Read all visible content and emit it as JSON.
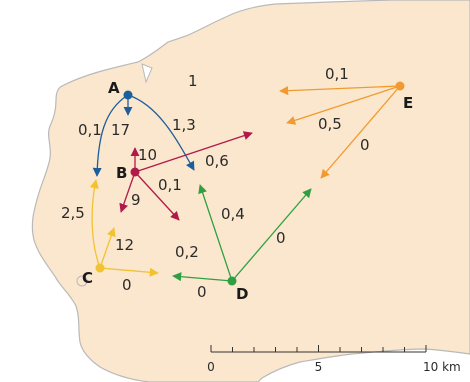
{
  "colors": {
    "land": "#fbe7cd",
    "coast": "#b9b9b9",
    "sea": "#ffffff",
    "node_A": "#1c5d9c",
    "node_B": "#b01a4a",
    "node_C": "#f2c230",
    "node_D": "#2ea043",
    "node_E": "#f29a2e"
  },
  "nodes": {
    "A": "A",
    "B": "B",
    "C": "C",
    "D": "D",
    "E": "E"
  },
  "flows": [
    {
      "id": "A-self",
      "value": "1"
    },
    {
      "id": "A-left",
      "value": "0,1"
    },
    {
      "id": "A-down",
      "value": "17"
    },
    {
      "id": "A-right",
      "value": "1,3"
    },
    {
      "id": "B-up",
      "value": "10"
    },
    {
      "id": "B-ne",
      "value": "0,6"
    },
    {
      "id": "B-down",
      "value": "9"
    },
    {
      "id": "B-se",
      "value": "0,1"
    },
    {
      "id": "C-up",
      "value": "2,5"
    },
    {
      "id": "C-ne",
      "value": "12"
    },
    {
      "id": "C-right",
      "value": "0"
    },
    {
      "id": "D-nw",
      "value": "0,4"
    },
    {
      "id": "D-left",
      "value": "0,2"
    },
    {
      "id": "D-ne",
      "value": "0"
    },
    {
      "id": "D-below",
      "value": "0"
    },
    {
      "id": "E-left",
      "value": "0,1"
    },
    {
      "id": "E-mid",
      "value": "0,5"
    },
    {
      "id": "E-down",
      "value": "0"
    }
  ],
  "scale": {
    "ticks": [
      "0",
      "5",
      "10 km"
    ]
  }
}
